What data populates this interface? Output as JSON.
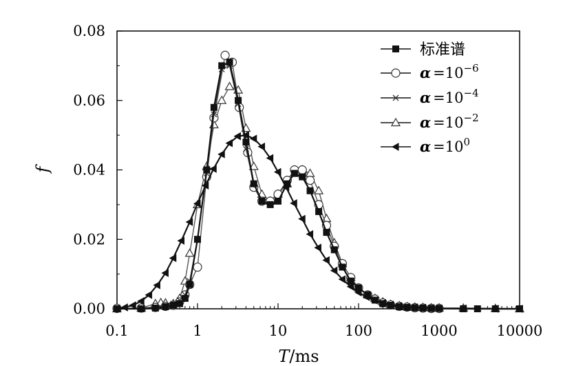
{
  "chart_data": {
    "type": "line",
    "title": "",
    "xlabel": {
      "var": "T",
      "unit": "/ms"
    },
    "ylabel": "f",
    "xscale": "log",
    "xlim": [
      0.1,
      10000
    ],
    "ylim": [
      0,
      0.08
    ],
    "xticks": [
      {
        "value": 0.1,
        "label": "0.1"
      },
      {
        "value": 1,
        "label": "1"
      },
      {
        "value": 10,
        "label": "10"
      },
      {
        "value": 100,
        "label": "100"
      },
      {
        "value": 1000,
        "label": "1000"
      },
      {
        "value": 10000,
        "label": "10000"
      }
    ],
    "yticks": [
      {
        "value": 0,
        "label": "0.00"
      },
      {
        "value": 0.02,
        "label": "0.02"
      },
      {
        "value": 0.04,
        "label": "0.04"
      },
      {
        "value": 0.06,
        "label": "0.06"
      },
      {
        "value": 0.08,
        "label": "0.08"
      }
    ],
    "grid": false,
    "legend_position": "top-right",
    "series": [
      {
        "name": "标准谱",
        "alpha_sup": "",
        "marker": "square",
        "x": [
          0.1,
          0.2,
          0.3,
          0.4,
          0.5,
          0.6,
          0.7,
          0.8,
          1.0,
          1.3,
          1.6,
          2.0,
          2.5,
          3.2,
          4.0,
          5.0,
          6.3,
          8.0,
          10,
          13,
          16,
          20,
          25,
          32,
          40,
          50,
          63,
          80,
          100,
          130,
          160,
          200,
          250,
          320,
          400,
          500,
          630,
          800,
          1000,
          2000,
          3000,
          5000,
          10000
        ],
        "y": [
          0,
          0,
          0.0002,
          0.0006,
          0.001,
          0.0015,
          0.003,
          0.007,
          0.02,
          0.04,
          0.058,
          0.07,
          0.071,
          0.06,
          0.048,
          0.036,
          0.031,
          0.03,
          0.031,
          0.036,
          0.039,
          0.038,
          0.034,
          0.028,
          0.022,
          0.017,
          0.012,
          0.008,
          0.006,
          0.004,
          0.0025,
          0.0015,
          0.001,
          0.0006,
          0.0004,
          0.0003,
          0.0002,
          0.0001,
          0.0001,
          0,
          0,
          0,
          0
        ]
      },
      {
        "name": "=10",
        "alpha_sup": "−6",
        "marker": "circle",
        "x": [
          0.1,
          0.2,
          0.3,
          0.4,
          0.5,
          0.6,
          0.7,
          0.8,
          1.0,
          1.3,
          1.6,
          2.2,
          2.7,
          3.3,
          4.2,
          5.0,
          6.3,
          8.0,
          10,
          13,
          16,
          20,
          25,
          32,
          40,
          50,
          63,
          80,
          100,
          130,
          160,
          200,
          250,
          320,
          400,
          500,
          630,
          800,
          1000
        ],
        "y": [
          0.0001,
          0.0002,
          0.0004,
          0.0007,
          0.001,
          0.002,
          0.004,
          0.007,
          0.012,
          0.038,
          0.055,
          0.073,
          0.071,
          0.058,
          0.045,
          0.035,
          0.031,
          0.031,
          0.033,
          0.037,
          0.04,
          0.04,
          0.037,
          0.03,
          0.024,
          0.018,
          0.013,
          0.009,
          0.006,
          0.004,
          0.0028,
          0.0017,
          0.0011,
          0.0007,
          0.0005,
          0.0003,
          0.0002,
          0.0001,
          0.0001
        ]
      },
      {
        "name": "=10",
        "alpha_sup": "−4",
        "marker": "cross",
        "x": [
          0.1,
          0.2,
          0.3,
          0.4,
          0.5,
          0.6,
          0.7,
          0.8,
          1.0,
          1.3,
          1.6,
          2.0,
          2.5,
          3.2,
          4.0,
          5.0,
          6.3,
          8.0,
          10,
          13,
          16,
          20,
          25,
          32,
          40,
          50,
          63,
          80,
          100,
          130,
          160,
          200,
          250,
          320,
          400,
          500,
          630,
          800,
          1000
        ],
        "y": [
          0.0001,
          0.0002,
          0.0005,
          0.0008,
          0.0015,
          0.0025,
          0.004,
          0.008,
          0.02,
          0.039,
          0.056,
          0.069,
          0.07,
          0.059,
          0.046,
          0.036,
          0.031,
          0.03,
          0.031,
          0.036,
          0.039,
          0.038,
          0.034,
          0.028,
          0.022,
          0.017,
          0.012,
          0.008,
          0.006,
          0.004,
          0.0026,
          0.0016,
          0.001,
          0.0006,
          0.0004,
          0.0003,
          0.0002,
          0.0001,
          0.0001
        ]
      },
      {
        "name": "=10",
        "alpha_sup": "−2",
        "marker": "triangle",
        "x": [
          0.1,
          0.2,
          0.3,
          0.35,
          0.4,
          0.5,
          0.6,
          0.7,
          0.8,
          1.0,
          1.3,
          1.6,
          2.0,
          2.5,
          3.2,
          4.0,
          5.0,
          6.3,
          8.0,
          10,
          13,
          16,
          20,
          25,
          32,
          40,
          50,
          63,
          80,
          100,
          130,
          160,
          200,
          250,
          320,
          400,
          500,
          630,
          800,
          1000,
          2000,
          5000,
          10000
        ],
        "y": [
          0,
          0.0002,
          0.0015,
          0.0018,
          0.0017,
          0.0015,
          0.003,
          0.008,
          0.016,
          0.03,
          0.041,
          0.053,
          0.06,
          0.064,
          0.063,
          0.052,
          0.041,
          0.033,
          0.031,
          0.033,
          0.036,
          0.039,
          0.04,
          0.039,
          0.034,
          0.026,
          0.019,
          0.013,
          0.009,
          0.006,
          0.004,
          0.003,
          0.002,
          0.0013,
          0.0009,
          0.0006,
          0.0005,
          0.0004,
          0.0003,
          0.0002,
          0.0002,
          0.0001,
          0
        ]
      },
      {
        "name": "=10",
        "alpha_sup": "0",
        "marker": "left-triangle",
        "x": [
          0.1,
          0.125,
          0.158,
          0.2,
          0.25,
          0.316,
          0.4,
          0.5,
          0.63,
          0.8,
          1.0,
          1.26,
          1.58,
          2.0,
          2.5,
          3.16,
          4.0,
          5.0,
          6.3,
          8.0,
          10,
          12.6,
          15.8,
          20,
          25,
          31.6,
          40,
          50,
          63,
          80,
          100,
          126,
          158,
          200,
          251,
          316,
          398,
          500,
          630,
          800,
          1000,
          2000,
          5000,
          10000
        ],
        "y": [
          0.0001,
          0.0004,
          0.001,
          0.0022,
          0.004,
          0.0068,
          0.0103,
          0.0146,
          0.0196,
          0.025,
          0.0303,
          0.0355,
          0.0403,
          0.0445,
          0.0477,
          0.0497,
          0.05,
          0.049,
          0.0467,
          0.0434,
          0.0394,
          0.035,
          0.0304,
          0.0259,
          0.0215,
          0.0176,
          0.014,
          0.011,
          0.0085,
          0.0064,
          0.0047,
          0.0034,
          0.0024,
          0.0017,
          0.0012,
          0.0008,
          0.0005,
          0.0004,
          0.0003,
          0.0002,
          0.0001,
          0.0001,
          0,
          0
        ]
      }
    ]
  }
}
